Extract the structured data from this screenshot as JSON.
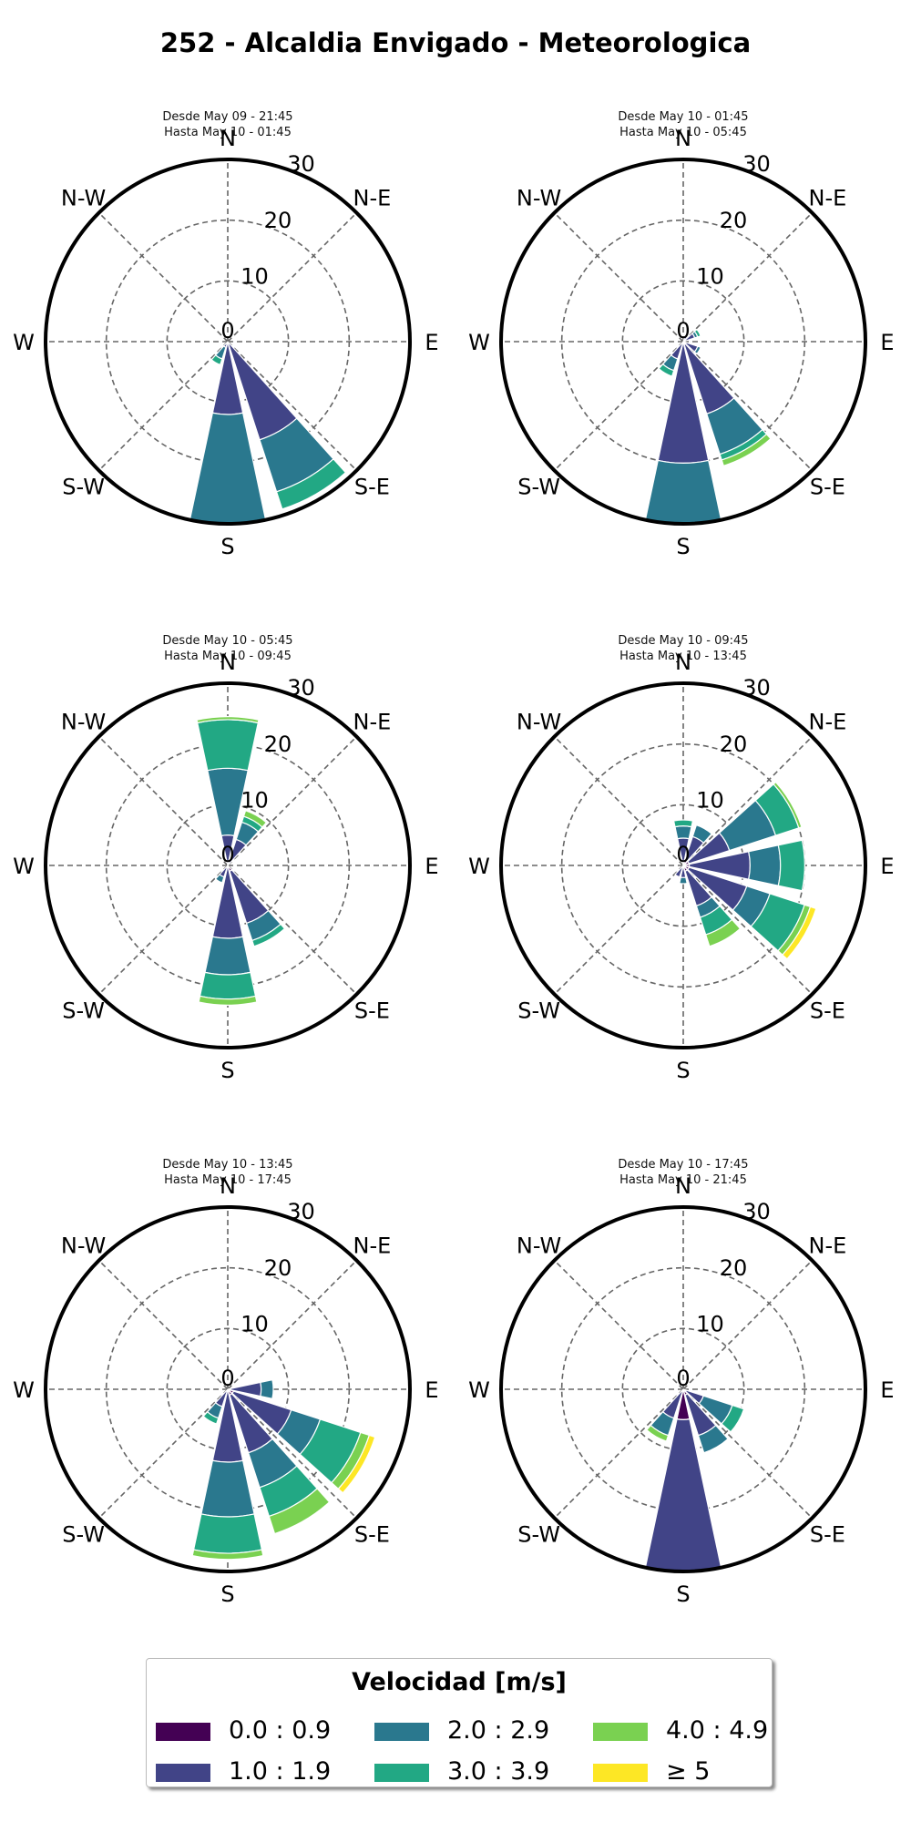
{
  "title": "252 - Alcaldia Envigado - Meteorologica",
  "directions": [
    "N",
    "N-E",
    "E",
    "S-E",
    "S",
    "S-W",
    "W",
    "N-W"
  ],
  "ring_labels": [
    "0",
    "10",
    "20",
    "30"
  ],
  "legend": {
    "title": "Velocidad [m/s]",
    "items": [
      {
        "label": "0.0 : 0.9",
        "color": "#440154"
      },
      {
        "label": "1.0 : 1.9",
        "color": "#414487"
      },
      {
        "label": "2.0 : 2.9",
        "color": "#2a788e"
      },
      {
        "label": "3.0 : 3.9",
        "color": "#22a884"
      },
      {
        "label": "4.0 : 4.9",
        "color": "#7ad151"
      },
      {
        "label": "≥  5",
        "color": "#fde725"
      }
    ]
  },
  "chart_data": [
    {
      "type": "windrose",
      "line1": "Desde May 09 - 21:45",
      "line2": "Hasta May 10 - 01:45",
      "rmax": 30,
      "bins": [
        "0.0 : 0.9",
        "1.0 : 1.9",
        "2.0 : 2.9",
        "3.0 : 3.9",
        "4.0 : 4.9",
        "≥  5"
      ],
      "sectors": [
        {
          "dir": 150,
          "values": [
            0,
            17,
            9,
            3,
            0,
            0
          ]
        },
        {
          "dir": 180,
          "values": [
            0,
            12,
            18,
            0,
            0,
            0
          ]
        },
        {
          "dir": 210,
          "values": [
            0,
            1,
            2,
            1,
            0,
            0
          ]
        }
      ]
    },
    {
      "type": "windrose",
      "line1": "Desde May 10 - 01:45",
      "line2": "Hasta May 10 - 05:45",
      "rmax": 30,
      "bins": [
        "0.0 : 0.9",
        "1.0 : 1.9",
        "2.0 : 2.9",
        "3.0 : 3.9",
        "4.0 : 4.9",
        "≥  5"
      ],
      "sectors": [
        {
          "dir": 30,
          "values": [
            0,
            1,
            0,
            0,
            0,
            0
          ]
        },
        {
          "dir": 60,
          "values": [
            0,
            2,
            0.5,
            0.5,
            0,
            0
          ]
        },
        {
          "dir": 120,
          "values": [
            0.5,
            2,
            0.5,
            0,
            0,
            0
          ]
        },
        {
          "dir": 150,
          "values": [
            0.5,
            12,
            7,
            1,
            1,
            0
          ]
        },
        {
          "dir": 180,
          "values": [
            0,
            20,
            10,
            0,
            0,
            0
          ]
        },
        {
          "dir": 210,
          "values": [
            0,
            3,
            2,
            1,
            0,
            0
          ]
        }
      ]
    },
    {
      "type": "windrose",
      "line1": "Desde May 10 - 05:45",
      "line2": "Hasta May 10 - 09:45",
      "rmax": 30,
      "bins": [
        "0.0 : 0.9",
        "1.0 : 1.9",
        "2.0 : 2.9",
        "3.0 : 3.9",
        "4.0 : 4.9",
        "≥  5"
      ],
      "sectors": [
        {
          "dir": 0,
          "values": [
            0,
            5,
            11,
            8,
            0.5,
            0
          ]
        },
        {
          "dir": 30,
          "values": [
            0.5,
            4,
            3,
            1,
            1,
            0
          ]
        },
        {
          "dir": 150,
          "values": [
            1,
            9,
            3,
            1,
            0,
            0
          ]
        },
        {
          "dir": 180,
          "values": [
            0,
            12,
            6,
            4,
            1,
            0
          ]
        },
        {
          "dir": 210,
          "values": [
            0,
            2,
            1,
            0,
            0,
            0
          ]
        }
      ]
    },
    {
      "type": "windrose",
      "line1": "Desde May 10 - 09:45",
      "line2": "Hasta May 10 - 13:45",
      "rmax": 30,
      "bins": [
        "0.0 : 0.9",
        "1.0 : 1.9",
        "2.0 : 2.9",
        "3.0 : 3.9",
        "4.0 : 4.9",
        "≥  5"
      ],
      "sectors": [
        {
          "dir": 0,
          "values": [
            0.5,
            4,
            2,
            1,
            0,
            0
          ]
        },
        {
          "dir": 30,
          "values": [
            1,
            4,
            2,
            0,
            0,
            0
          ]
        },
        {
          "dir": 60,
          "values": [
            1,
            7,
            8,
            4,
            0.5,
            0
          ]
        },
        {
          "dir": 90,
          "values": [
            1,
            10,
            5,
            4,
            0,
            0
          ]
        },
        {
          "dir": 120,
          "values": [
            1,
            10,
            4,
            6,
            1,
            1
          ]
        },
        {
          "dir": 150,
          "values": [
            1,
            6,
            2,
            3,
            2,
            0
          ]
        },
        {
          "dir": 180,
          "values": [
            0,
            2,
            1,
            0,
            0,
            0
          ]
        },
        {
          "dir": 210,
          "values": [
            0,
            2,
            0,
            0,
            0,
            0
          ]
        }
      ]
    },
    {
      "type": "windrose",
      "line1": "Desde May 10 - 13:45",
      "line2": "Hasta May 10 - 17:45",
      "rmax": 30,
      "bins": [
        "0.0 : 0.9",
        "1.0 : 1.9",
        "2.0 : 2.9",
        "3.0 : 3.9",
        "4.0 : 4.9",
        "≥  5"
      ],
      "sectors": [
        {
          "dir": 90,
          "values": [
            0.5,
            5,
            2,
            0,
            0,
            0
          ]
        },
        {
          "dir": 120,
          "values": [
            1,
            10,
            5,
            7,
            1.5,
            1
          ]
        },
        {
          "dir": 150,
          "values": [
            1,
            10,
            6,
            5,
            3,
            0
          ]
        },
        {
          "dir": 180,
          "values": [
            0,
            12,
            9,
            6,
            1,
            0
          ]
        },
        {
          "dir": 210,
          "values": [
            0,
            3,
            2,
            1,
            0,
            0
          ]
        }
      ]
    },
    {
      "type": "windrose",
      "line1": "Desde May 10 - 17:45",
      "line2": "Hasta May 10 - 21:45",
      "rmax": 30,
      "bins": [
        "0.0 : 0.9",
        "1.0 : 1.9",
        "2.0 : 2.9",
        "3.0 : 3.9",
        "4.0 : 4.9",
        "≥  5"
      ],
      "sectors": [
        {
          "dir": 120,
          "values": [
            0.5,
            3,
            5,
            2,
            0,
            0
          ]
        },
        {
          "dir": 150,
          "values": [
            1,
            7,
            3,
            0,
            0,
            0
          ]
        },
        {
          "dir": 180,
          "values": [
            5,
            25,
            0,
            0,
            0,
            0
          ]
        },
        {
          "dir": 210,
          "values": [
            0,
            5,
            3,
            0,
            1,
            0
          ]
        }
      ]
    }
  ]
}
